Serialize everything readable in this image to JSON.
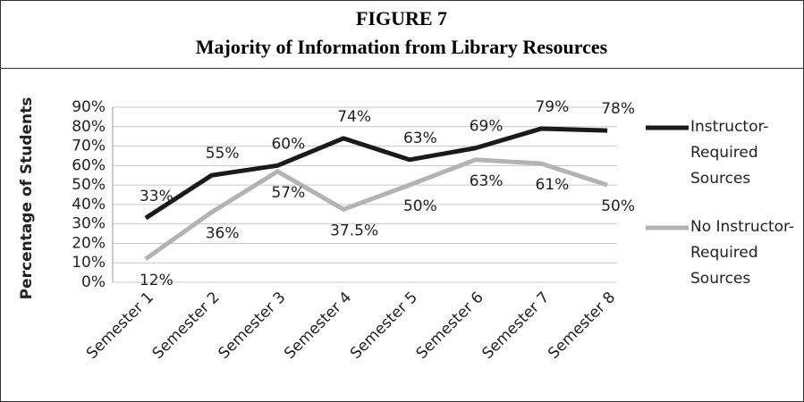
{
  "chart_data": {
    "type": "line",
    "title": [
      "FIGURE 7",
      "Majority of Information from Library Resources"
    ],
    "y_label": "Percentage of Students",
    "categories": [
      "Semester 1",
      "Semester 2",
      "Semester 3",
      "Semester 4",
      "Semester 5",
      "Semester 6",
      "Semester 7",
      "Semester 8"
    ],
    "series": [
      {
        "name": "Instructor-Required Sources",
        "color": "#1a1a1a",
        "values": [
          33,
          55,
          60,
          74,
          63,
          69,
          79,
          78
        ],
        "value_labels": [
          "33%",
          "55%",
          "60%",
          "74%",
          "63%",
          "69%",
          "79%",
          "78%"
        ]
      },
      {
        "name": "No Instructor-Required Sources",
        "color": "#b3b3b3",
        "values": [
          12,
          36,
          57,
          37.5,
          50,
          63,
          61,
          50
        ],
        "value_labels": [
          "12%",
          "36%",
          "57%",
          "37.5%",
          "50%",
          "63%",
          "61%",
          "50%"
        ]
      }
    ],
    "ylim": [
      0,
      90
    ],
    "yticks": [
      {
        "value": 0,
        "label": "0%"
      },
      {
        "value": 10,
        "label": "10%"
      },
      {
        "value": 20,
        "label": "20%"
      },
      {
        "value": 30,
        "label": "30%"
      },
      {
        "value": 40,
        "label": "40%"
      },
      {
        "value": 50,
        "label": "50%"
      },
      {
        "value": 60,
        "label": "60%"
      },
      {
        "value": 70,
        "label": "70%"
      },
      {
        "value": 80,
        "label": "80%"
      },
      {
        "value": 90,
        "label": "90%"
      }
    ],
    "grid": true,
    "legend": "right"
  }
}
